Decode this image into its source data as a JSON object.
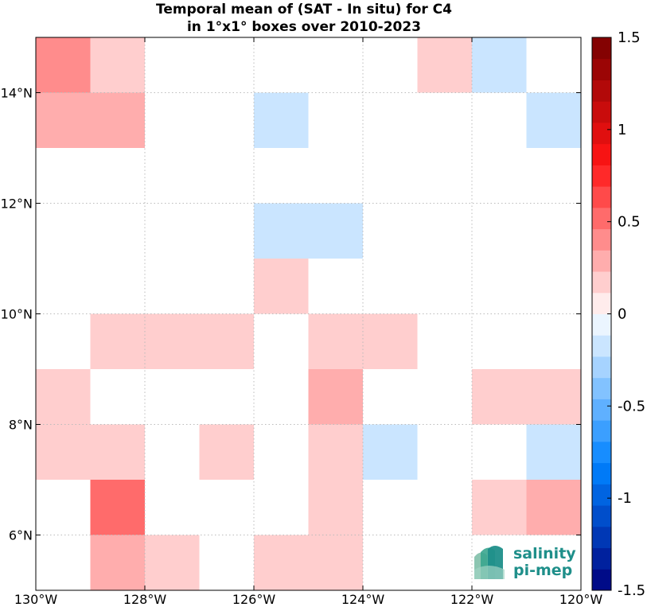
{
  "chart_data": {
    "type": "heatmap",
    "title": [
      "Temporal mean of (SAT - In situ) for C4",
      "in 1°x1° boxes over 2010-2023"
    ],
    "xlabel": "",
    "ylabel": "",
    "xlim": [
      -130,
      -120
    ],
    "ylim": [
      5,
      15
    ],
    "grid": true,
    "x_ticks": [
      -130,
      -128,
      -126,
      -124,
      -122,
      -120
    ],
    "x_tick_labels": [
      "130°W",
      "128°W",
      "126°W",
      "124°W",
      "122°W",
      "120°W"
    ],
    "y_ticks": [
      6,
      8,
      10,
      12,
      14
    ],
    "y_tick_labels": [
      "6°N",
      "8°N",
      "10°N",
      "12°N",
      "14°N"
    ],
    "colorbar": {
      "range": [
        -1.5,
        1.5
      ],
      "levels": 26,
      "ticks": [
        1.5,
        1,
        0.5,
        0,
        -0.5,
        -1,
        -1.5
      ],
      "tick_labels": [
        "1.5",
        "1",
        "0.5",
        "0",
        "-0.5",
        "-1",
        "-1.5"
      ]
    },
    "cell_size_deg": 1,
    "cells": [
      {
        "lon": -130,
        "lat": 14,
        "value": 0.35
      },
      {
        "lon": -129,
        "lat": 14,
        "value": 0.12
      },
      {
        "lon": -123,
        "lat": 14,
        "value": 0.12
      },
      {
        "lon": -122,
        "lat": 14,
        "value": -0.12
      },
      {
        "lon": -130,
        "lat": 13,
        "value": 0.25
      },
      {
        "lon": -129,
        "lat": 13,
        "value": 0.25
      },
      {
        "lon": -126,
        "lat": 13,
        "value": -0.12
      },
      {
        "lon": -121,
        "lat": 13,
        "value": -0.12
      },
      {
        "lon": -126,
        "lat": 11,
        "value": -0.12
      },
      {
        "lon": -125,
        "lat": 11,
        "value": -0.12
      },
      {
        "lon": -126,
        "lat": 10,
        "value": 0.12
      },
      {
        "lon": -129,
        "lat": 9,
        "value": 0.12
      },
      {
        "lon": -128,
        "lat": 9,
        "value": 0.12
      },
      {
        "lon": -127,
        "lat": 9,
        "value": 0.12
      },
      {
        "lon": -125,
        "lat": 9,
        "value": 0.12
      },
      {
        "lon": -124,
        "lat": 9,
        "value": 0.12
      },
      {
        "lon": -130,
        "lat": 8,
        "value": 0.12
      },
      {
        "lon": -125,
        "lat": 8,
        "value": 0.25
      },
      {
        "lon": -122,
        "lat": 8,
        "value": 0.12
      },
      {
        "lon": -121,
        "lat": 8,
        "value": 0.12
      },
      {
        "lon": -130,
        "lat": 7,
        "value": 0.12
      },
      {
        "lon": -129,
        "lat": 7,
        "value": 0.12
      },
      {
        "lon": -127,
        "lat": 7,
        "value": 0.12
      },
      {
        "lon": -125,
        "lat": 7,
        "value": 0.12
      },
      {
        "lon": -124,
        "lat": 7,
        "value": -0.12
      },
      {
        "lon": -121,
        "lat": 7,
        "value": -0.12
      },
      {
        "lon": -129,
        "lat": 6,
        "value": 0.55
      },
      {
        "lon": -125,
        "lat": 6,
        "value": 0.12
      },
      {
        "lon": -122,
        "lat": 6,
        "value": 0.12
      },
      {
        "lon": -121,
        "lat": 6,
        "value": 0.25
      },
      {
        "lon": -129,
        "lat": 5,
        "value": 0.25
      },
      {
        "lon": -128,
        "lat": 5,
        "value": 0.12
      },
      {
        "lon": -126,
        "lat": 5,
        "value": 0.12
      },
      {
        "lon": -125,
        "lat": 5,
        "value": 0.12
      }
    ]
  },
  "logo": {
    "line1": "salinity",
    "line2": "pi-mep"
  },
  "colors": {
    "gridline": "#bbbbbb",
    "logo_teal": "#1f8f8a"
  }
}
